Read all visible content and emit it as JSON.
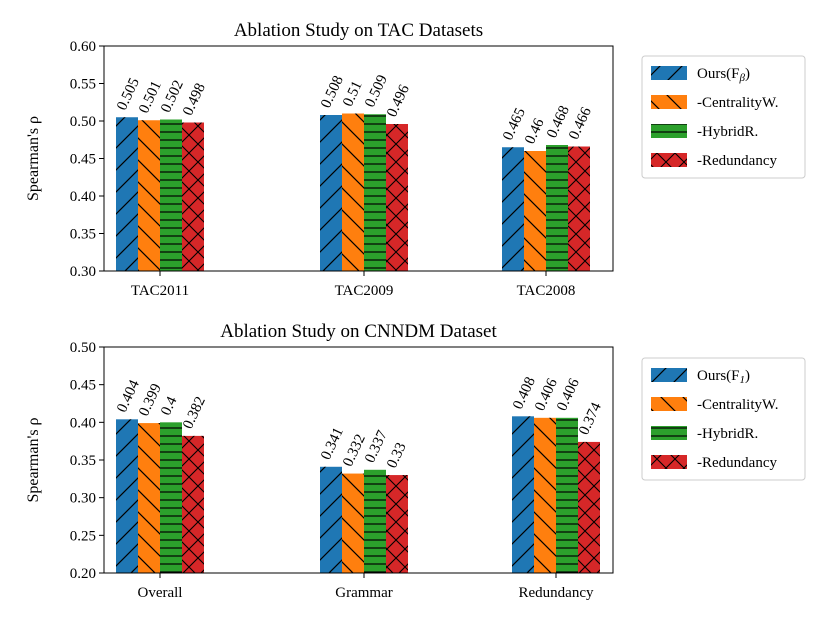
{
  "chart_data": [
    {
      "type": "bar",
      "title": "Ablation Study on TAC Datasets",
      "ylabel": "Spearman's ρ",
      "xlabel": "",
      "ylim": [
        0.3,
        0.6
      ],
      "yticks": [
        "0.30",
        "0.35",
        "0.40",
        "0.45",
        "0.50",
        "0.55",
        "0.60"
      ],
      "categories": [
        "TAC2011",
        "TAC2009",
        "TAC2008"
      ],
      "grid": false,
      "legend_position": "right",
      "series": [
        {
          "name": "Ours(F",
          "name_sub": "β",
          "name_suffix": ")",
          "color": "#1f77b4",
          "hatch": "fwd",
          "values": [
            0.505,
            0.508,
            0.465
          ],
          "labels": [
            "0.505",
            "0.508",
            "0.465"
          ]
        },
        {
          "name": "-CentralityW.",
          "color": "#ff7f0e",
          "hatch": "back",
          "values": [
            0.501,
            0.51,
            0.46
          ],
          "labels": [
            "0.501",
            "0.51",
            "0.46"
          ]
        },
        {
          "name": "-HybridR.",
          "color": "#2ca02c",
          "hatch": "horiz",
          "values": [
            0.502,
            0.509,
            0.468
          ],
          "labels": [
            "0.502",
            "0.509",
            "0.468"
          ]
        },
        {
          "name": "-Redundancy",
          "color": "#d62728",
          "hatch": "cross",
          "values": [
            0.498,
            0.496,
            0.466
          ],
          "labels": [
            "0.498",
            "0.496",
            "0.466"
          ]
        }
      ]
    },
    {
      "type": "bar",
      "title": "Ablation Study on CNNDM Dataset",
      "ylabel": "Spearman's ρ",
      "xlabel": "",
      "ylim": [
        0.2,
        0.5
      ],
      "yticks": [
        "0.20",
        "0.25",
        "0.30",
        "0.35",
        "0.40",
        "0.45",
        "0.50"
      ],
      "categories": [
        "Overall",
        "Grammar",
        "Redundancy"
      ],
      "grid": false,
      "legend_position": "right",
      "series": [
        {
          "name": "Ours(F",
          "name_sub": "1",
          "name_suffix": ")",
          "color": "#1f77b4",
          "hatch": "fwd",
          "values": [
            0.404,
            0.341,
            0.408
          ],
          "labels": [
            "0.404",
            "0.341",
            "0.408"
          ]
        },
        {
          "name": "-CentralityW.",
          "color": "#ff7f0e",
          "hatch": "back",
          "values": [
            0.399,
            0.332,
            0.406
          ],
          "labels": [
            "0.399",
            "0.332",
            "0.406"
          ]
        },
        {
          "name": "-HybridR.",
          "color": "#2ca02c",
          "hatch": "horiz",
          "values": [
            0.4,
            0.337,
            0.406
          ],
          "labels": [
            "0.4",
            "0.337",
            "0.406"
          ]
        },
        {
          "name": "-Redundancy",
          "color": "#d62728",
          "hatch": "cross",
          "values": [
            0.382,
            0.33,
            0.374
          ],
          "labels": [
            "0.382",
            "0.33",
            "0.374"
          ]
        }
      ]
    }
  ]
}
